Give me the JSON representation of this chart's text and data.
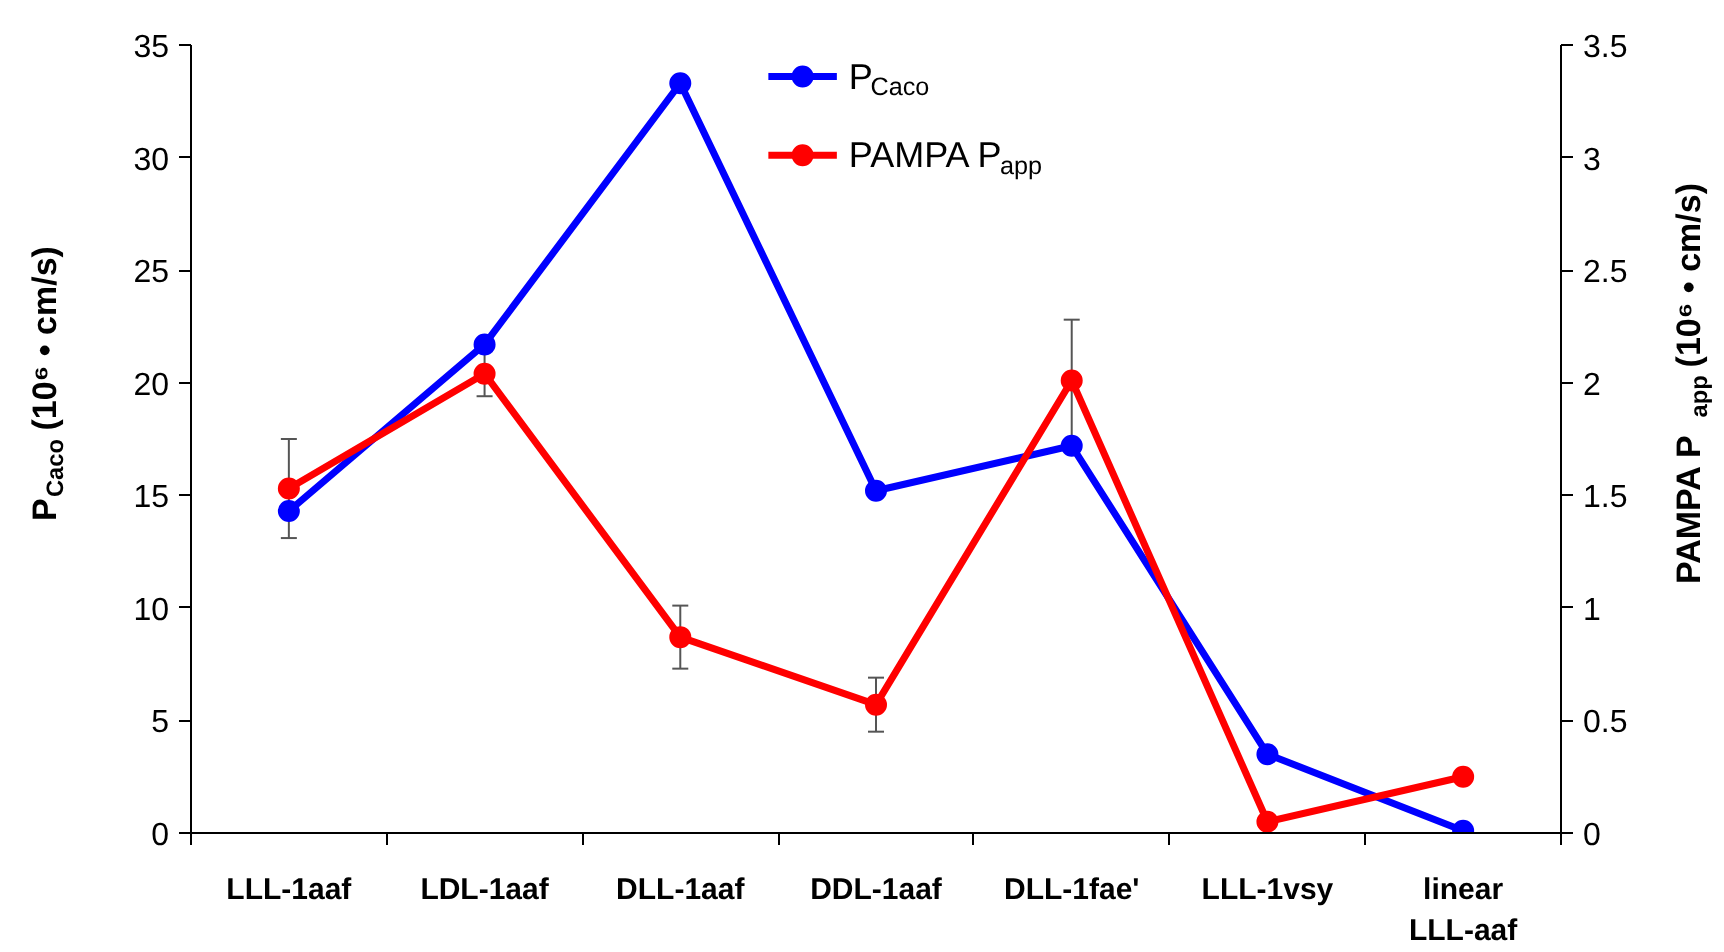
{
  "chart_data": {
    "type": "line",
    "categories": [
      "LLL-1aaf",
      "LDL-1aaf",
      "DLL-1aaf",
      "DDL-1aaf",
      "DLL-1fae'",
      "LLL-1vsy",
      "linear\nLLL-aaf"
    ],
    "ylabel": "P$_{Caco}$ (10⁶ • cm/s)",
    "y2label": "PAMPA P$_{app}$ (10⁶ • cm/s)",
    "ylim": [
      0,
      35
    ],
    "yticks": [
      0,
      5,
      10,
      15,
      20,
      25,
      30,
      35
    ],
    "y2lim": [
      0,
      3.5
    ],
    "y2ticks": [
      0,
      {
        "value": 0.5,
        "label": "0.5"
      },
      1,
      {
        "value": 1.5,
        "label": "1.5"
      },
      2,
      {
        "value": 2.5,
        "label": "2.5"
      },
      3,
      {
        "value": 3.5,
        "label": "3.5"
      }
    ],
    "series": [
      {
        "name": "P$_{Caco}$",
        "color": "#0000ff",
        "values": [
          14.3,
          21.7,
          33.3,
          15.2,
          17.2,
          3.5,
          0.1
        ]
      },
      {
        "name": "PAMPA P$_{app}$",
        "color": "#ff0000",
        "axis": "y2",
        "values": [
          1.53,
          2.04,
          0.87,
          0.57,
          2.01,
          0.05,
          0.25
        ],
        "errors": [
          0.22,
          0.1,
          0.14,
          0.12,
          0.27,
          null,
          null
        ]
      }
    ],
    "marker": "circle",
    "legend": "top",
    "grid": false
  }
}
